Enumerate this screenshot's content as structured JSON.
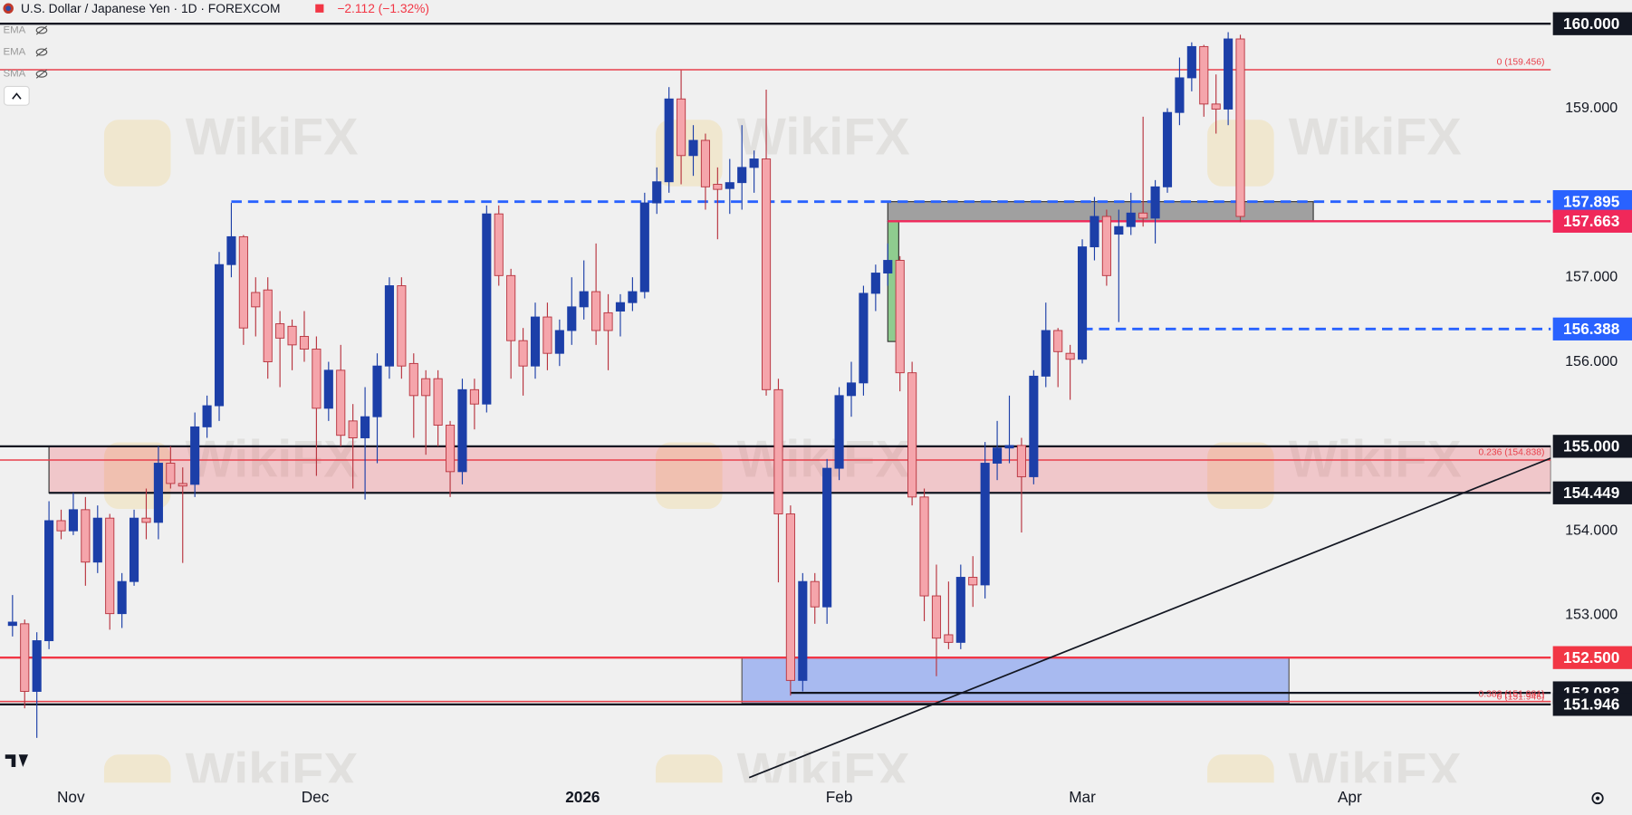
{
  "chart_data": {
    "type": "candlestick",
    "title": "U.S. Dollar / Japanese Yen · 1D · FOREXCOM",
    "change": "−2.112 (−1.32%)",
    "indicators": [
      "EMA",
      "EMA",
      "SMA"
    ],
    "watermark": "WikiFX",
    "up_color": "#1c3fa8",
    "down_color": "#f5a5ab",
    "down_border": "#b8343f",
    "open": [
      152.88,
      152.9,
      152.1,
      152.7,
      154.12,
      154.0,
      154.25,
      153.63,
      154.15,
      153.02,
      153.4,
      154.15,
      154.1,
      154.8,
      154.56,
      154.55,
      155.23,
      155.48,
      157.15,
      157.48,
      156.82,
      156.85,
      156.45,
      156.42,
      156.3,
      156.15,
      155.45,
      155.9,
      155.3,
      155.1,
      155.35,
      155.95,
      156.9,
      155.98,
      155.8,
      155.8,
      155.25,
      154.7,
      155.67,
      155.5,
      157.75,
      157.02,
      156.25,
      155.95,
      156.53,
      156.1,
      156.37,
      156.65,
      156.83,
      156.58,
      156.6,
      156.7,
      156.83,
      157.88,
      158.13,
      159.11,
      158.44,
      158.62,
      158.1,
      158.05,
      158.12,
      158.3,
      158.4,
      155.67,
      154.2,
      152.23,
      153.4,
      153.1,
      154.74,
      155.6,
      155.75,
      156.81,
      157.05,
      157.2,
      155.87,
      154.4,
      153.23,
      152.77,
      152.68,
      153.45,
      153.36,
      154.8,
      154.98,
      155.01,
      154.64,
      155.83,
      156.37,
      156.1,
      156.03,
      157.36,
      157.72,
      157.51,
      157.6,
      157.76,
      157.7,
      158.07,
      158.95,
      159.36,
      159.73,
      159.05,
      158.99,
      159.82
    ],
    "high": [
      153.24,
      152.95,
      152.8,
      154.35,
      154.25,
      154.45,
      154.4,
      154.3,
      154.2,
      153.5,
      154.25,
      154.5,
      155.0,
      155.0,
      154.75,
      155.4,
      155.6,
      157.3,
      157.88,
      157.5,
      157.0,
      157.0,
      156.6,
      156.5,
      156.6,
      156.3,
      156.0,
      156.2,
      155.5,
      155.7,
      156.1,
      157.0,
      157.0,
      156.1,
      155.9,
      155.9,
      155.3,
      155.8,
      155.8,
      157.85,
      157.85,
      157.1,
      156.4,
      156.7,
      156.7,
      156.5,
      157.0,
      157.2,
      157.4,
      156.8,
      156.8,
      157.0,
      158.0,
      158.3,
      159.25,
      159.45,
      158.8,
      158.7,
      158.3,
      158.4,
      158.8,
      158.5,
      159.22,
      155.8,
      154.3,
      153.5,
      153.5,
      154.85,
      155.7,
      156.0,
      156.9,
      157.15,
      157.4,
      157.25,
      156.0,
      154.5,
      153.6,
      153.4,
      153.6,
      153.7,
      155.05,
      155.3,
      155.6,
      155.1,
      155.9,
      156.7,
      156.4,
      156.2,
      157.45,
      157.95,
      157.8,
      157.8,
      158.0,
      158.9,
      158.15,
      159.0,
      159.6,
      159.78,
      159.75,
      159.4,
      159.9,
      159.87
    ],
    "low": [
      152.75,
      151.9,
      151.55,
      152.6,
      153.9,
      153.95,
      153.35,
      153.5,
      152.83,
      152.85,
      153.35,
      153.9,
      153.9,
      154.5,
      153.62,
      154.4,
      155.1,
      155.3,
      157.0,
      156.2,
      156.3,
      155.8,
      155.7,
      155.9,
      156.0,
      154.65,
      155.3,
      155.0,
      154.5,
      154.37,
      154.8,
      155.8,
      155.8,
      155.1,
      154.9,
      155.0,
      154.4,
      154.55,
      155.2,
      155.4,
      156.9,
      155.8,
      155.6,
      155.8,
      155.9,
      155.95,
      156.2,
      156.5,
      156.2,
      155.9,
      156.3,
      156.6,
      156.75,
      157.75,
      158.0,
      158.1,
      158.2,
      157.8,
      157.45,
      157.75,
      157.8,
      158.0,
      155.6,
      153.39,
      152.05,
      152.1,
      152.9,
      152.9,
      154.6,
      155.35,
      155.6,
      156.6,
      156.9,
      155.65,
      154.3,
      152.93,
      152.28,
      152.6,
      152.6,
      153.1,
      153.2,
      154.6,
      154.8,
      153.98,
      154.55,
      155.7,
      155.7,
      155.55,
      155.98,
      157.2,
      156.9,
      156.47,
      157.5,
      157.6,
      157.4,
      158.0,
      158.8,
      159.2,
      158.9,
      158.7,
      158.8,
      157.65
    ],
    "close": [
      152.92,
      152.1,
      152.7,
      154.12,
      154.0,
      154.25,
      153.63,
      154.15,
      153.02,
      153.4,
      154.15,
      154.1,
      154.8,
      154.56,
      154.53,
      155.23,
      155.48,
      157.15,
      157.48,
      156.4,
      156.65,
      156.0,
      156.28,
      156.2,
      156.15,
      155.45,
      155.9,
      155.13,
      155.1,
      155.35,
      155.95,
      156.9,
      155.95,
      155.6,
      155.6,
      155.25,
      154.7,
      155.67,
      155.5,
      157.75,
      157.02,
      156.25,
      155.95,
      156.53,
      156.1,
      156.37,
      156.65,
      156.83,
      156.37,
      156.37,
      156.7,
      156.83,
      157.88,
      158.13,
      159.11,
      158.44,
      158.62,
      158.07,
      158.04,
      158.12,
      158.3,
      158.4,
      155.67,
      154.2,
      152.23,
      153.4,
      153.1,
      154.74,
      155.6,
      155.75,
      156.81,
      157.05,
      157.2,
      155.87,
      154.4,
      153.23,
      152.73,
      152.68,
      153.45,
      153.36,
      154.8,
      154.98,
      155.01,
      154.64,
      155.83,
      156.37,
      156.12,
      156.03,
      157.36,
      157.72,
      157.02,
      157.6,
      157.76,
      157.7,
      158.07,
      158.95,
      159.36,
      159.73,
      159.05,
      158.99,
      159.82,
      157.72
    ],
    "xlim": [
      -1.03,
      126.54
    ],
    "xticks": [
      {
        "value": 4.8,
        "label": "Nov"
      },
      {
        "value": 24.9,
        "label": "Dec"
      },
      {
        "value": 46.9,
        "label": "2026"
      },
      {
        "value": 68.0,
        "label": "Feb"
      },
      {
        "value": 88.0,
        "label": "Mar"
      },
      {
        "value": 110.0,
        "label": "Apr"
      }
    ],
    "ylim": [
      151.02,
      160.28
    ],
    "yticks": [
      {
        "value": 159,
        "label": "159.000"
      },
      {
        "value": 157,
        "label": "157.000"
      },
      {
        "value": 156,
        "label": "156.000"
      },
      {
        "value": 154,
        "label": "154.000"
      },
      {
        "value": 153,
        "label": "153.000"
      }
    ],
    "levels": [
      {
        "value": 160,
        "label": "160.000",
        "color": "#131722",
        "from": -1.03,
        "style": "solid"
      },
      {
        "value": 159.456,
        "note": "0 (159.456)",
        "color": "#e8414c",
        "from": -1.03,
        "style": "solid"
      },
      {
        "value": 157.895,
        "label": "157.895",
        "color": "#2962ff",
        "from": 18,
        "style": "dashed"
      },
      {
        "value": 157.663,
        "label": "157.663",
        "color": "#f0285a",
        "from": 72,
        "style": "solid"
      },
      {
        "value": 156.388,
        "label": "156.388",
        "color": "#2962ff",
        "from": 88,
        "style": "dashed"
      },
      {
        "value": 155,
        "label": "155.000",
        "color": "#131722",
        "from": -1.03,
        "style": "solid"
      },
      {
        "value": 154.838,
        "note": "0.236 (154.838)",
        "color": "#e8414c",
        "from": -1.03,
        "style": "solid"
      },
      {
        "value": 154.449,
        "label": "154.449",
        "color": "#131722",
        "from": 3,
        "style": "solid"
      },
      {
        "value": 152.5,
        "label": "152.500",
        "color": "#f23645",
        "from": -1.03,
        "style": "solid"
      },
      {
        "value": 152.083,
        "label": "152.083",
        "color": "#131722",
        "from": 64,
        "style": "solid"
      },
      {
        "value": 151.981,
        "note": "0.382 (151.981)",
        "color": "#e8414c",
        "from": -1.03,
        "style": "solid"
      },
      {
        "value": 151.946,
        "label": "151.946",
        "note": "0 (151.946)",
        "color": "#131722",
        "from": -1.03,
        "style": "solid"
      }
    ],
    "zones": [
      {
        "x": [
          3,
          126.54
        ],
        "y": [
          154.449,
          155
        ],
        "color": "rgba(242,54,69,0.22)",
        "border": "#333333"
      },
      {
        "x": [
          72,
          107
        ],
        "y": [
          157.663,
          157.895
        ],
        "color": "#a0a0a0",
        "border": "#333333"
      },
      {
        "x": [
          72,
          72.9
        ],
        "y": [
          156.24,
          157.663
        ],
        "color": "#8fcc8f",
        "border": "#333333"
      },
      {
        "x": [
          60,
          105
        ],
        "y": [
          151.96,
          152.5
        ],
        "color": "rgba(120,150,240,0.6)",
        "border": "#555555"
      }
    ],
    "trendline": {
      "x": [
        60.6,
        126.54
      ],
      "y": [
        151.08,
        154.86
      ],
      "color": "#131722"
    }
  }
}
